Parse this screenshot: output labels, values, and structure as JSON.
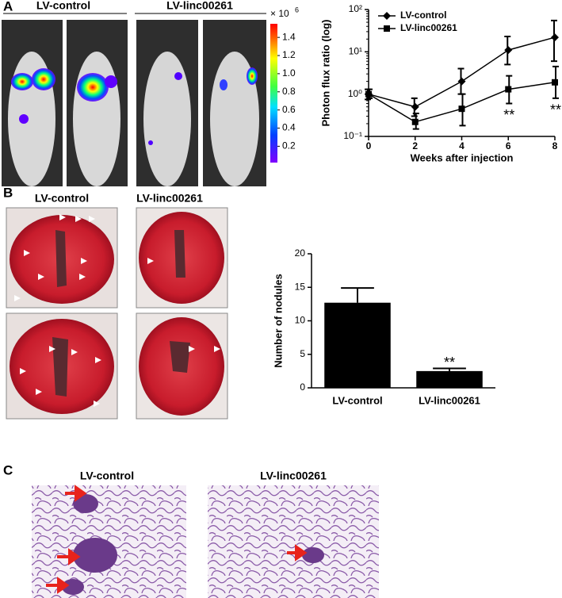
{
  "panel_labels": [
    "A",
    "B",
    "C"
  ],
  "panel_a": {
    "image_labels": [
      "LV-control",
      "LV-linc00261"
    ],
    "colorbar": {
      "scale_label": "× 10",
      "scale_exponent": "6",
      "clim": [
        0.02,
        1.55
      ],
      "ticks": [
        0.2,
        0.4,
        0.6,
        0.8,
        {
          "value": 1.0,
          "label": "1.0"
        },
        1.2,
        1.4
      ]
    }
  },
  "panel_b": {
    "image_labels": [
      "LV-control",
      "LV-linc00261"
    ]
  },
  "panel_c": {
    "image_labels": [
      "LV-control",
      "LV-linc00261"
    ]
  },
  "chart_data": [
    {
      "type": "line",
      "ylabel": "Photon flux ratio (log)",
      "xlabel": "Weeks after injection",
      "x": [
        0,
        2,
        4,
        6,
        8
      ],
      "xlim": [
        0,
        8
      ],
      "xticks": [
        0,
        2,
        4,
        6,
        8
      ],
      "yscale": "log",
      "ylim": [
        0.1,
        100
      ],
      "yticks": [
        {
          "value": 0.1,
          "label": "10⁻¹"
        },
        {
          "value": 1,
          "label": "10⁰"
        },
        {
          "value": 10,
          "label": "10¹"
        },
        {
          "value": 100,
          "label": "10²"
        }
      ],
      "legend": "upper left",
      "series": [
        {
          "name": "LV-control",
          "color": "#000000",
          "marker": "diamond",
          "values": [
            1.0,
            0.5,
            2.0,
            11,
            22
          ],
          "lower": [
            0.75,
            0.3,
            1.0,
            5,
            6
          ],
          "upper": [
            1.3,
            0.8,
            4.0,
            23,
            55
          ]
        },
        {
          "name": "LV-linc00261",
          "color": "#000000",
          "marker": "square",
          "values": [
            1.0,
            0.22,
            0.45,
            1.3,
            1.9
          ],
          "lower": [
            0.8,
            0.15,
            0.18,
            0.6,
            0.8
          ],
          "upper": [
            1.3,
            0.35,
            1.0,
            2.7,
            4.5
          ],
          "point_annotations": [
            null,
            null,
            null,
            "**",
            "**"
          ]
        }
      ]
    },
    {
      "type": "bar",
      "ylabel": "Number of nodules",
      "categories": [
        "LV-control",
        "LV-linc00261"
      ],
      "values": [
        12.7,
        2.5
      ],
      "errors": [
        2.2,
        0.4
      ],
      "value_annotations": [
        null,
        "**"
      ],
      "color": "#000000",
      "ylim": [
        0,
        20
      ],
      "yticks": [
        0,
        5,
        10,
        15,
        20
      ]
    }
  ]
}
